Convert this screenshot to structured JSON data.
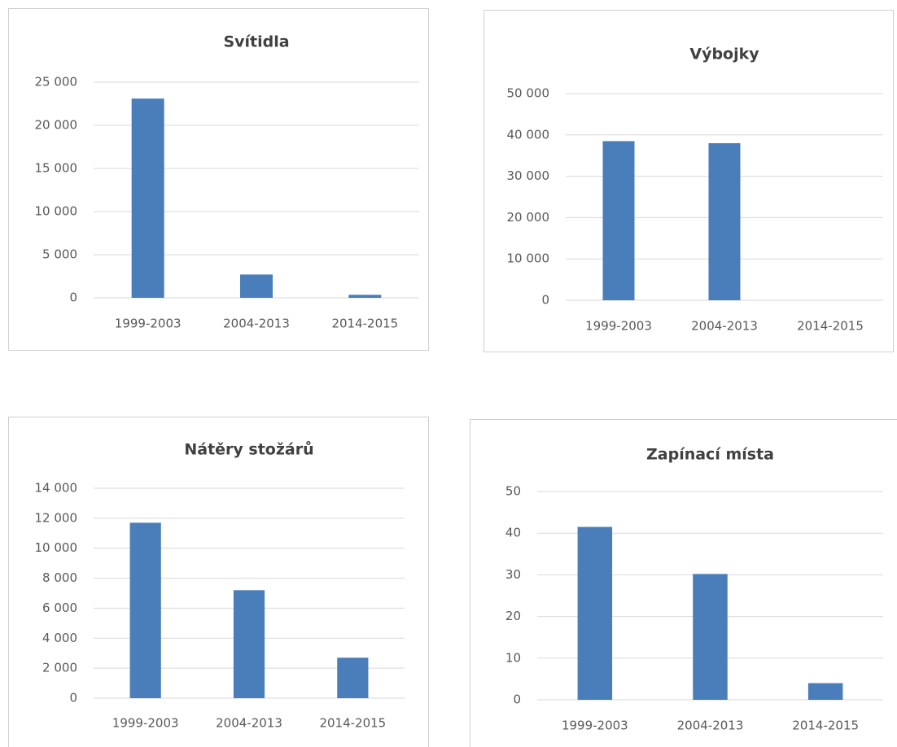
{
  "chart_data": [
    {
      "type": "bar",
      "title": "Svítidla",
      "categories": [
        "1999-2003",
        "2004-2013",
        "2014-2015"
      ],
      "values": [
        23100,
        2700,
        350
      ],
      "color": "#4a7ebb",
      "ylim": [
        0,
        25000
      ],
      "yticks": [
        0,
        {
          "value": 5000,
          "label": "5 000"
        },
        {
          "value": 10000,
          "label": "10 000"
        },
        {
          "value": 15000,
          "label": "15 000"
        },
        {
          "value": 20000,
          "label": "20 000"
        },
        {
          "value": 25000,
          "label": "25 000"
        }
      ],
      "grid": true
    },
    {
      "type": "bar",
      "title": "Výbojky",
      "categories": [
        "1999-2003",
        "2004-2013",
        "2014-2015"
      ],
      "values": [
        38500,
        38000,
        0
      ],
      "color": "#4a7ebb",
      "ylim": [
        0,
        50000
      ],
      "yticks": [
        0,
        {
          "value": 10000,
          "label": "10 000"
        },
        {
          "value": 20000,
          "label": "20 000"
        },
        {
          "value": 30000,
          "label": "30 000"
        },
        {
          "value": 40000,
          "label": "40 000"
        },
        {
          "value": 50000,
          "label": "50 000"
        }
      ],
      "grid": true
    },
    {
      "type": "bar",
      "title": "Nátěry stožárů",
      "categories": [
        "1999-2003",
        "2004-2013",
        "2014-2015"
      ],
      "values": [
        11700,
        7200,
        2700
      ],
      "color": "#4a7ebb",
      "ylim": [
        0,
        14000
      ],
      "yticks": [
        0,
        {
          "value": 2000,
          "label": "2 000"
        },
        {
          "value": 4000,
          "label": "4 000"
        },
        {
          "value": 6000,
          "label": "6 000"
        },
        {
          "value": 8000,
          "label": "8 000"
        },
        {
          "value": 10000,
          "label": "10 000"
        },
        {
          "value": 12000,
          "label": "12 000"
        },
        {
          "value": 14000,
          "label": "14 000"
        }
      ],
      "grid": true
    },
    {
      "type": "bar",
      "title": "Zapínací místa",
      "categories": [
        "1999-2003",
        "2004-2013",
        "2014-2015"
      ],
      "values": [
        41.5,
        30.2,
        4
      ],
      "color": "#4a7ebb",
      "ylim": [
        0,
        50
      ],
      "yticks": [
        0,
        10,
        20,
        30,
        40,
        50
      ],
      "grid": true
    }
  ]
}
